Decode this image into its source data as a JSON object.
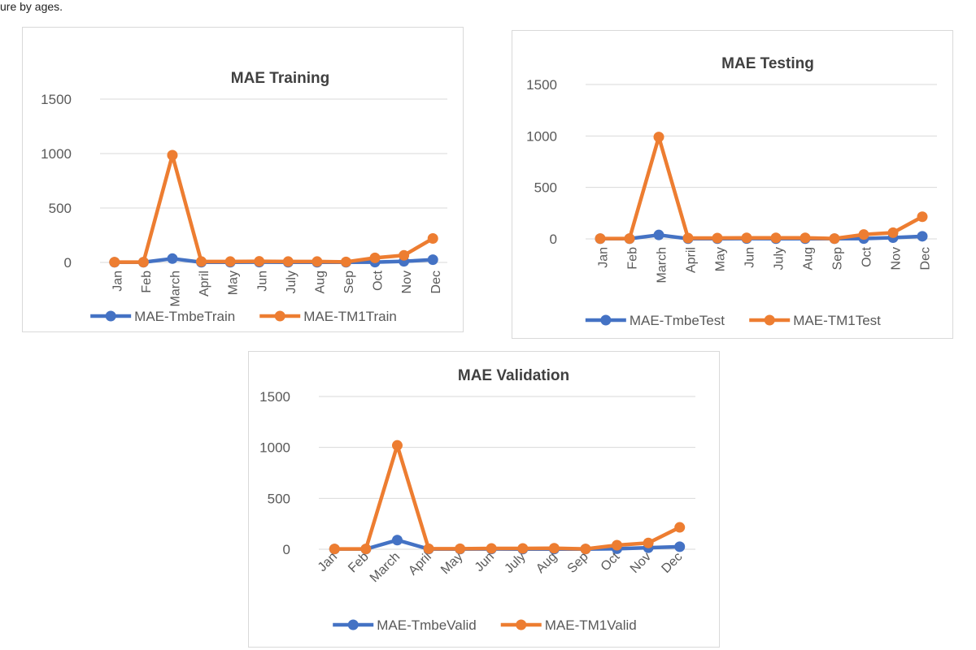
{
  "page_caption": "ure by ages.",
  "colors": {
    "tmbe": "#4472C4",
    "tm1": "#ED7D31",
    "grid": "#d9d9d9",
    "text": "#595959",
    "title": "#404040"
  },
  "chart_data": [
    {
      "type": "line",
      "title": "MAE Training",
      "xlabel": "",
      "ylabel": "",
      "categories": [
        "Jan",
        "Feb",
        "March",
        "April",
        "May",
        "Jun",
        "July",
        "Aug",
        "Sep",
        "Oct",
        "Nov",
        "Dec"
      ],
      "yticks": [
        "0",
        "500",
        "1000",
        "1500"
      ],
      "ylim": [
        0,
        1500
      ],
      "xlabel_rotation": -90,
      "grid": true,
      "legend": "bottom",
      "series": [
        {
          "name": "MAE-TmbeTrain",
          "color": "#4472C4",
          "values": [
            2,
            2,
            35,
            2,
            2,
            3,
            2,
            2,
            2,
            3,
            10,
            25
          ]
        },
        {
          "name": "MAE-TM1Train",
          "color": "#ED7D31",
          "values": [
            3,
            3,
            985,
            8,
            8,
            10,
            8,
            8,
            5,
            42,
            65,
            220
          ]
        }
      ]
    },
    {
      "type": "line",
      "title": "MAE Testing",
      "xlabel": "",
      "ylabel": "",
      "categories": [
        "Jan",
        "Feb",
        "March",
        "April",
        "May",
        "Jun",
        "July",
        "Aug",
        "Sep",
        "Oct",
        "Nov",
        "Dec"
      ],
      "yticks": [
        "0",
        "500",
        "1000",
        "1500"
      ],
      "ylim": [
        0,
        1500
      ],
      "xlabel_rotation": -90,
      "grid": true,
      "legend": "bottom",
      "series": [
        {
          "name": "MAE-TmbeTest",
          "color": "#4472C4",
          "values": [
            2,
            2,
            38,
            2,
            2,
            3,
            2,
            2,
            2,
            3,
            12,
            25
          ]
        },
        {
          "name": "MAE-TM1Test",
          "color": "#ED7D31",
          "values": [
            3,
            3,
            990,
            8,
            8,
            10,
            10,
            10,
            3,
            42,
            60,
            215
          ]
        }
      ]
    },
    {
      "type": "line",
      "title": "MAE Validation",
      "xlabel": "",
      "ylabel": "",
      "categories": [
        "Jan",
        "Feb",
        "March",
        "April",
        "May",
        "Jun",
        "July",
        "Aug",
        "Sep",
        "Oct",
        "Nov",
        "Dec"
      ],
      "yticks": [
        "0",
        "500",
        "1000",
        "1500"
      ],
      "ylim": [
        0,
        1500
      ],
      "xlabel_rotation": -45,
      "grid": true,
      "legend": "bottom",
      "series": [
        {
          "name": "MAE-TmbeValid",
          "color": "#4472C4",
          "values": [
            2,
            2,
            90,
            2,
            2,
            3,
            2,
            2,
            2,
            5,
            15,
            25
          ]
        },
        {
          "name": "MAE-TM1Valid",
          "color": "#ED7D31",
          "values": [
            3,
            3,
            1020,
            5,
            5,
            8,
            8,
            10,
            3,
            40,
            62,
            215
          ]
        }
      ]
    }
  ]
}
